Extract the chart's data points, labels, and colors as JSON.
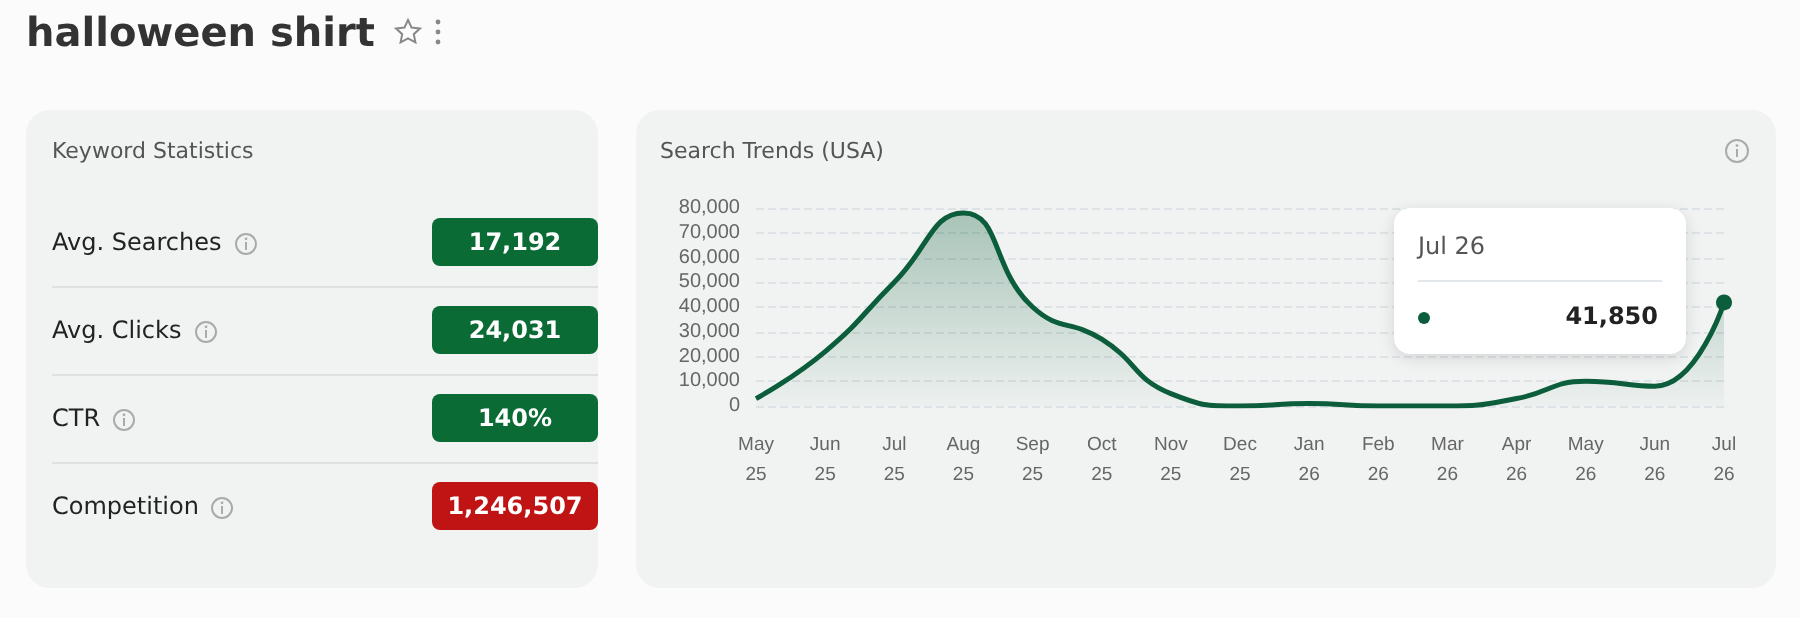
{
  "chart_data": [
    {
      "type": "other",
      "title": "Keyword Statistics",
      "annotations": [
        "halloween shirt"
      ],
      "categories": [
        "Avg. Searches",
        "Avg. Clicks",
        "CTR",
        "Competition"
      ],
      "value_labels": [
        "17,192",
        "24,031",
        "140%",
        "1,246,507"
      ]
    },
    {
      "type": "area",
      "title": "Search Trends (USA)",
      "categories": [
        "May 25",
        "Jun 25",
        "Jul 25",
        "Aug 25",
        "Sep 25",
        "Oct 25",
        "Nov 25",
        "Dec 25",
        "Jan 26",
        "Feb 26",
        "Mar 26",
        "Apr 26",
        "May 26",
        "Jun 26",
        "Jul 26"
      ],
      "series": [
        {
          "color": "#0b5d3b",
          "values": [
            3000,
            22000,
            50000,
            78000,
            40000,
            27000,
            5000,
            0,
            1000,
            0,
            0,
            3000,
            10000,
            8000,
            41850
          ]
        }
      ],
      "ylim": [
        0,
        80000
      ],
      "yticks": [
        0,
        {
          "value": 10000,
          "label": "10,000"
        },
        {
          "value": 20000,
          "label": "20,000"
        },
        {
          "value": 30000,
          "label": "30,000"
        },
        {
          "value": 40000,
          "label": "40,000"
        },
        {
          "value": 50000,
          "label": "50,000"
        },
        {
          "value": 60000,
          "label": "60,000"
        },
        {
          "value": 70000,
          "label": "70,000"
        },
        {
          "value": 80000,
          "label": "80,000"
        }
      ],
      "grid": "y",
      "marker": "none",
      "line_style": "solid",
      "annotations": [
        "Jul 26",
        {
          "text": "41,850",
          "x": "Jul 26",
          "y": 41850
        }
      ]
    }
  ]
}
